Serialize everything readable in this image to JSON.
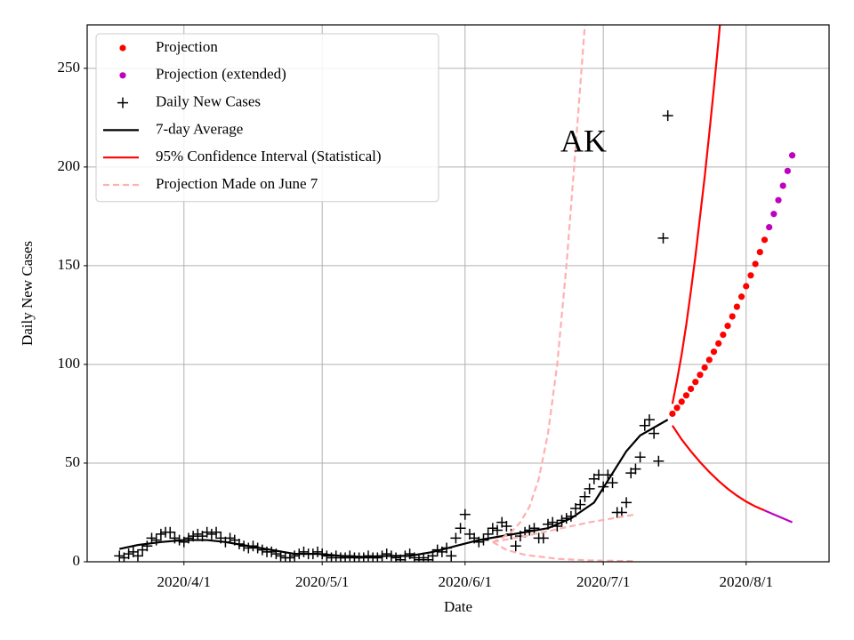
{
  "chart_data": {
    "type": "line",
    "annotation": "AK",
    "x_label": "Date",
    "y_label": "Daily New Cases",
    "xlim": [
      "2020-03-11",
      "2020-08-19"
    ],
    "ylim": [
      0,
      272
    ],
    "xticks": [
      {
        "value": "2020-04-01",
        "label": "2020/4/1"
      },
      {
        "value": "2020-05-01",
        "label": "2020/5/1"
      },
      {
        "value": "2020-06-01",
        "label": "2020/6/1"
      },
      {
        "value": "2020-07-01",
        "label": "2020/7/1"
      },
      {
        "value": "2020-08-01",
        "label": "2020/8/1"
      }
    ],
    "yticks": [
      0,
      50,
      100,
      150,
      200,
      250
    ],
    "grid": true,
    "legend": "upper left",
    "series": [
      {
        "name": "Projection",
        "color": "#ff0000",
        "marker": "o",
        "x": [
          "2020-07-16",
          "2020-07-17",
          "2020-07-18",
          "2020-07-19",
          "2020-07-20",
          "2020-07-21",
          "2020-07-22",
          "2020-07-23",
          "2020-07-24",
          "2020-07-25",
          "2020-07-26",
          "2020-07-27",
          "2020-07-28",
          "2020-07-29",
          "2020-07-30",
          "2020-07-31",
          "2020-08-01",
          "2020-08-02",
          "2020-08-03",
          "2020-08-04",
          "2020-08-05"
        ],
        "values": [
          75.0,
          78.0,
          81.1,
          84.3,
          87.6,
          91.1,
          94.7,
          98.4,
          102.3,
          106.4,
          110.6,
          115.0,
          119.5,
          124.3,
          129.2,
          134.3,
          139.6,
          145.1,
          150.9,
          156.9,
          163.1
        ]
      },
      {
        "name": "Projection (extended)",
        "color": "#bf00bf",
        "marker": "o",
        "x": [
          "2020-08-06",
          "2020-08-07",
          "2020-08-08",
          "2020-08-09",
          "2020-08-10",
          "2020-08-11"
        ],
        "values": [
          169.5,
          176.2,
          183.2,
          190.5,
          198.0,
          205.9
        ]
      },
      {
        "name": "Daily New Cases",
        "color": "#000000",
        "marker": "+",
        "x": [
          "2020-03-18",
          "2020-03-19",
          "2020-03-20",
          "2020-03-21",
          "2020-03-22",
          "2020-03-23",
          "2020-03-24",
          "2020-03-25",
          "2020-03-26",
          "2020-03-27",
          "2020-03-28",
          "2020-03-29",
          "2020-03-30",
          "2020-03-31",
          "2020-04-01",
          "2020-04-02",
          "2020-04-03",
          "2020-04-04",
          "2020-04-05",
          "2020-04-06",
          "2020-04-07",
          "2020-04-08",
          "2020-04-09",
          "2020-04-10",
          "2020-04-11",
          "2020-04-12",
          "2020-04-13",
          "2020-04-14",
          "2020-04-15",
          "2020-04-16",
          "2020-04-17",
          "2020-04-18",
          "2020-04-19",
          "2020-04-20",
          "2020-04-21",
          "2020-04-22",
          "2020-04-23",
          "2020-04-24",
          "2020-04-25",
          "2020-04-26",
          "2020-04-27",
          "2020-04-28",
          "2020-04-29",
          "2020-04-30",
          "2020-05-01",
          "2020-05-02",
          "2020-05-03",
          "2020-05-04",
          "2020-05-05",
          "2020-05-06",
          "2020-05-07",
          "2020-05-08",
          "2020-05-09",
          "2020-05-10",
          "2020-05-11",
          "2020-05-12",
          "2020-05-13",
          "2020-05-14",
          "2020-05-15",
          "2020-05-16",
          "2020-05-17",
          "2020-05-18",
          "2020-05-19",
          "2020-05-20",
          "2020-05-21",
          "2020-05-22",
          "2020-05-23",
          "2020-05-24",
          "2020-05-25",
          "2020-05-26",
          "2020-05-27",
          "2020-05-28",
          "2020-05-29",
          "2020-05-30",
          "2020-05-31",
          "2020-06-01",
          "2020-06-02",
          "2020-06-03",
          "2020-06-04",
          "2020-06-05",
          "2020-06-06",
          "2020-06-07",
          "2020-06-08",
          "2020-06-09",
          "2020-06-10",
          "2020-06-11",
          "2020-06-12",
          "2020-06-13",
          "2020-06-14",
          "2020-06-15",
          "2020-06-16",
          "2020-06-17",
          "2020-06-18",
          "2020-06-19",
          "2020-06-20",
          "2020-06-21",
          "2020-06-22",
          "2020-06-23",
          "2020-06-24",
          "2020-06-25",
          "2020-06-26",
          "2020-06-27",
          "2020-06-28",
          "2020-06-29",
          "2020-06-30",
          "2020-07-01",
          "2020-07-02",
          "2020-07-03",
          "2020-07-04",
          "2020-07-05",
          "2020-07-06",
          "2020-07-07",
          "2020-07-08",
          "2020-07-09",
          "2020-07-10",
          "2020-07-11",
          "2020-07-12",
          "2020-07-13",
          "2020-07-14",
          "2020-07-15"
        ],
        "values": [
          3,
          2,
          4,
          5,
          3,
          6,
          8,
          12,
          11,
          14,
          15,
          15,
          12,
          11,
          10,
          12,
          13,
          14,
          13,
          15,
          14,
          15,
          12,
          10,
          12,
          11,
          9,
          8,
          7,
          8,
          7,
          6,
          5,
          5,
          4,
          3,
          2,
          2,
          3,
          4,
          5,
          4,
          4,
          5,
          4,
          3,
          2,
          3,
          2,
          2,
          3,
          2,
          2,
          2,
          3,
          2,
          2,
          3,
          4,
          3,
          2,
          1,
          3,
          4,
          2,
          1,
          2,
          1,
          3,
          6,
          5,
          7,
          3,
          12,
          17,
          24,
          14,
          12,
          10,
          11,
          14,
          17,
          16,
          20,
          18,
          14,
          8,
          13,
          15,
          16,
          17,
          12,
          12,
          19,
          20,
          18,
          21,
          22,
          23,
          27,
          29,
          33,
          37,
          42,
          44,
          38,
          44,
          40,
          25,
          25,
          30,
          45,
          47,
          53,
          69,
          72,
          65,
          51,
          164,
          226
        ]
      },
      {
        "name": "7-day Average",
        "color": "#000000",
        "linestyle": "-",
        "x": [
          "2020-03-18",
          "2020-03-22",
          "2020-03-27",
          "2020-04-01",
          "2020-04-06",
          "2020-04-10",
          "2020-04-15",
          "2020-04-20",
          "2020-04-25",
          "2020-04-30",
          "2020-05-05",
          "2020-05-10",
          "2020-05-15",
          "2020-05-20",
          "2020-05-25",
          "2020-05-30",
          "2020-06-04",
          "2020-06-09",
          "2020-06-14",
          "2020-06-19",
          "2020-06-24",
          "2020-06-29",
          "2020-07-06",
          "2020-07-09",
          "2020-07-12",
          "2020-07-15"
        ],
        "values": [
          6.5,
          8.5,
          10,
          11,
          11,
          10,
          8,
          6,
          4,
          4,
          3,
          2.5,
          3,
          3,
          5,
          8,
          11,
          13,
          15,
          17,
          22,
          30,
          56,
          64,
          68,
          72
        ]
      },
      {
        "name": "95% Confidence Interval (Statistical)",
        "color": "#ff0000",
        "linestyle": "-",
        "x": [
          "2020-07-16",
          "2020-07-17",
          "2020-07-18",
          "2020-07-19",
          "2020-07-20",
          "2020-07-21",
          "2020-07-22",
          "2020-07-23",
          "2020-07-24",
          "2020-07-25",
          "2020-07-26",
          "2020-07-27"
        ],
        "values": [
          80,
          92,
          105,
          120,
          137,
          155,
          175,
          195,
          217,
          240,
          264,
          290
        ]
      },
      {
        "name": "Projection Made on June 7",
        "color": "#ffb0b0",
        "linestyle": "--",
        "x": [
          "2020-06-07",
          "2020-06-09",
          "2020-06-11",
          "2020-06-13",
          "2020-06-15",
          "2020-06-17",
          "2020-06-19",
          "2020-06-21",
          "2020-06-23",
          "2020-06-25",
          "2020-06-27",
          "2020-06-28"
        ],
        "values": [
          10,
          12,
          15,
          20,
          28,
          42,
          65,
          100,
          150,
          210,
          272,
          300
        ]
      },
      {
        "color": "#ff0000",
        "linestyle": "-",
        "x": [
          "2020-07-16",
          "2020-07-18",
          "2020-07-20",
          "2020-07-22",
          "2020-07-24",
          "2020-07-26",
          "2020-07-28",
          "2020-07-30",
          "2020-08-01",
          "2020-08-03",
          "2020-08-05"
        ],
        "values": [
          69,
          62,
          56,
          50.5,
          45.5,
          41,
          37,
          33.5,
          30.5,
          28,
          26
        ]
      },
      {
        "color": "#bf00bf",
        "linestyle": "-",
        "x": [
          "2020-08-05",
          "2020-08-07",
          "2020-08-09",
          "2020-08-11"
        ],
        "values": [
          26,
          24,
          22,
          20
        ]
      },
      {
        "color": "#ffb0b0",
        "linestyle": "--",
        "x": [
          "2020-06-07",
          "2020-06-14",
          "2020-06-21",
          "2020-06-28",
          "2020-07-08"
        ],
        "values": [
          10,
          13,
          16.5,
          20,
          24
        ]
      },
      {
        "color": "#ffb0b0",
        "linestyle": "--",
        "x": [
          "2020-06-07",
          "2020-06-10",
          "2020-06-14",
          "2020-06-21",
          "2020-06-28",
          "2020-07-08"
        ],
        "values": [
          10,
          6,
          3.5,
          1.5,
          0.7,
          0.3
        ]
      }
    ]
  }
}
